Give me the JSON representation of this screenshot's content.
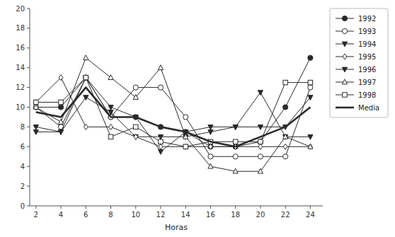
{
  "chart_data": {
    "type": "line",
    "x": [
      2,
      4,
      6,
      8,
      10,
      12,
      14,
      16,
      18,
      20,
      22,
      24
    ],
    "series": [
      {
        "name": "1992",
        "color": "#2a2a2a",
        "marker": "circle",
        "values": [
          10,
          10,
          13,
          9,
          9,
          8,
          7.5,
          6,
          6,
          6.5,
          10,
          15
        ]
      },
      {
        "name": "1993",
        "color": "#2a2a2a",
        "marker": "circle-open",
        "values": [
          10,
          8,
          13,
          9,
          12,
          12,
          9,
          5,
          5,
          5,
          5,
          12
        ]
      },
      {
        "name": "1994",
        "color": "#2a2a2a",
        "marker": "triangle-down",
        "values": [
          8,
          7.5,
          11,
          9.5,
          7,
          7,
          7,
          7.5,
          8,
          8,
          8,
          11
        ]
      },
      {
        "name": "1995",
        "color": "#2a2a2a",
        "marker": "diamond-open",
        "values": [
          10.5,
          13,
          8,
          8,
          7,
          6,
          6,
          6,
          6,
          6,
          6,
          6
        ]
      },
      {
        "name": "1996",
        "color": "#2a2a2a",
        "marker": "triangle-down",
        "values": [
          7.5,
          7.5,
          13,
          10,
          9,
          5.5,
          7.5,
          8,
          8,
          11.5,
          7,
          7
        ]
      },
      {
        "name": "1997",
        "color": "#2a2a2a",
        "marker": "triangle-up-open",
        "values": [
          10,
          8.5,
          15,
          13,
          11,
          14,
          7,
          4,
          3.5,
          3.5,
          7,
          6
        ]
      },
      {
        "name": "1998",
        "color": "#2a2a2a",
        "marker": "square-open",
        "values": [
          10.5,
          10.5,
          13,
          7,
          8,
          6.5,
          6,
          6.5,
          6.5,
          6.5,
          12.5,
          12.5
        ]
      },
      {
        "name": "Media",
        "color": "#2a2a2a",
        "marker": "none",
        "values": [
          9.5,
          9,
          12,
          9,
          9,
          8,
          7.5,
          6.5,
          6,
          7,
          8,
          10
        ]
      }
    ],
    "xlim": [
      1.5,
      25
    ],
    "ylim": [
      0,
      20
    ],
    "xticks": [
      2,
      4,
      6,
      8,
      10,
      12,
      14,
      16,
      18,
      20,
      22,
      24
    ],
    "yticks": [
      0,
      2,
      4,
      6,
      8,
      10,
      12,
      14,
      16,
      18,
      20
    ],
    "xlabel": "Horas",
    "grid": false,
    "legend": "right"
  }
}
